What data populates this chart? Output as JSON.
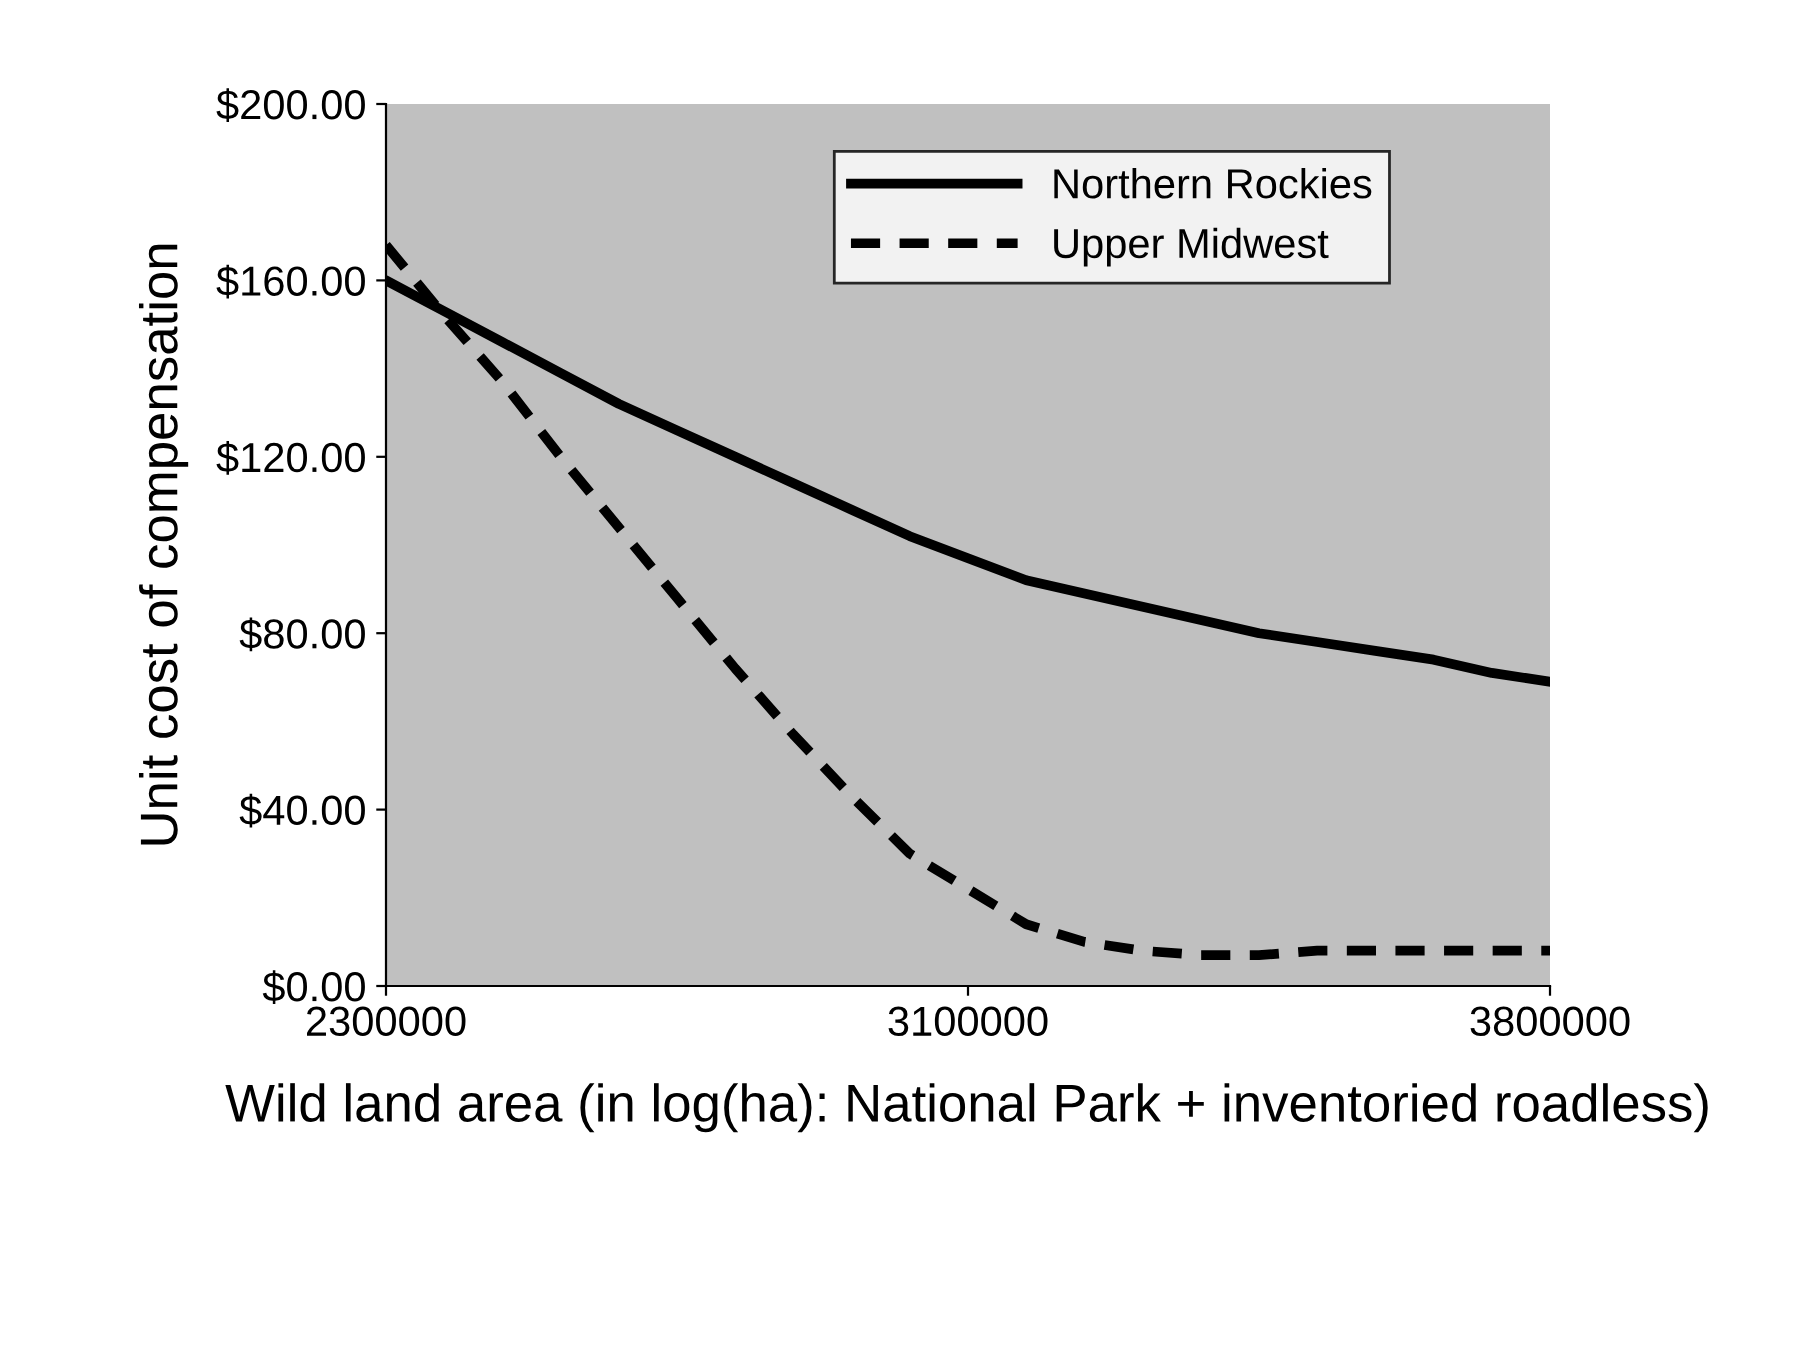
{
  "chart_data": {
    "type": "line",
    "xlabel": "Wild land area (in log(ha): National Park + inventoried roadless)",
    "ylabel": "Unit cost of compensation",
    "categories": [
      "2300000",
      null,
      null,
      null,
      null,
      null,
      null,
      null,
      null,
      null,
      "3100000",
      null,
      null,
      null,
      null,
      null,
      null,
      null,
      null,
      null,
      "3800000"
    ],
    "series": [
      {
        "name": "Northern Rockies",
        "color": "#000000",
        "line_style": "solid",
        "values": [
          160,
          153,
          146,
          139,
          132,
          126,
          120,
          114,
          108,
          102,
          97,
          92,
          89,
          86,
          83,
          80,
          78,
          76,
          74,
          71,
          69
        ]
      },
      {
        "name": "Upper Midwest",
        "color": "#000000",
        "line_style": "dashed",
        "values": [
          168,
          152,
          137,
          120,
          104,
          88,
          72,
          57,
          43,
          30,
          22,
          14,
          10,
          8,
          7,
          7,
          8,
          8,
          8,
          8,
          8
        ]
      }
    ],
    "ylim": [
      0,
      200
    ],
    "yticks": [
      {
        "value": 0,
        "label": "$0.00"
      },
      {
        "value": 40,
        "label": "$40.00"
      },
      {
        "value": 80,
        "label": "$80.00"
      },
      {
        "value": 120,
        "label": "$120.00"
      },
      {
        "value": 160,
        "label": "$160.00"
      },
      {
        "value": 200,
        "label": "$200.00"
      }
    ],
    "legend": "top right",
    "grid": false,
    "marker": "none"
  }
}
